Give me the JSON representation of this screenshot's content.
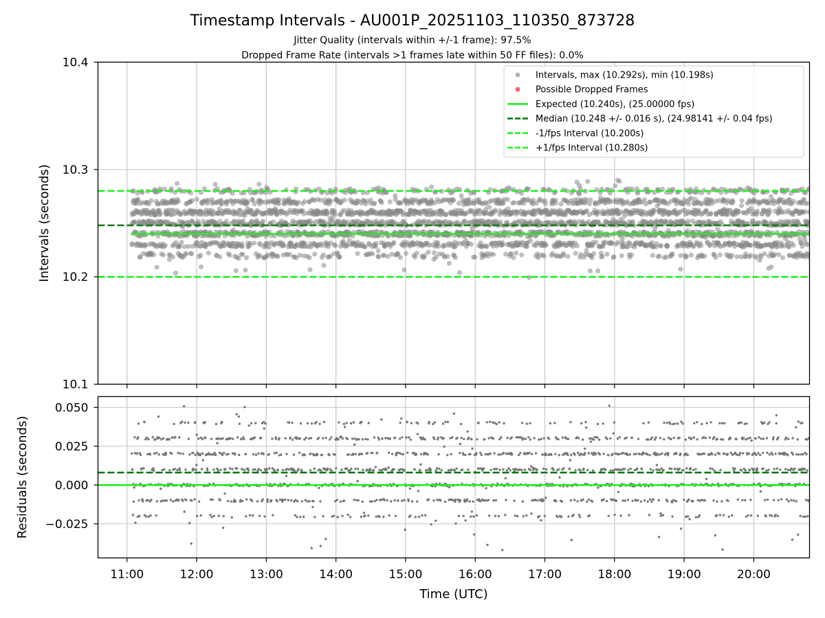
{
  "chart_data": [
    {
      "type": "scatter",
      "title": "Timestamp Intervals - AU001P_20251103_110350_873728",
      "subtitle_lines": [
        "Jitter Quality (intervals within +/-1 frame): 97.5%",
        "Dropped Frame Rate (intervals >1 frames late within 50 FF files): 0.0%"
      ],
      "ylabel": "Intervals (seconds)",
      "xlim": [
        "10:35",
        "20:48"
      ],
      "ylim": [
        10.1,
        10.4
      ],
      "yticks": [
        "10.1",
        "10.2",
        "10.3",
        "10.4"
      ],
      "grid": true,
      "legend_position": "top-right",
      "legend": [
        {
          "label": "Intervals, max (10.292s), min (10.198s)",
          "kind": "marker",
          "color": "#a8a8a8"
        },
        {
          "label": "Possible Dropped Frames",
          "kind": "marker",
          "color": "#ee6666"
        },
        {
          "label": "Expected (10.240s), (25.00000 fps)",
          "kind": "solid",
          "color": "#22ee22"
        },
        {
          "label": "Median (10.248 +/- 0.016 s), (24.98141 +/- 0.04 fps)",
          "kind": "dashed",
          "color": "#117711"
        },
        {
          "label": "-1/fps Interval (10.200s)",
          "kind": "dashed",
          "color": "#22ee22"
        },
        {
          "label": "+1/fps Interval (10.280s)",
          "kind": "dashed",
          "color": "#22ee22"
        }
      ],
      "series": [
        {
          "name": "Intervals",
          "style": "scatter",
          "x_range": [
            "11:04",
            "20:48"
          ],
          "count": 3440,
          "levels": [
            10.22,
            10.23,
            10.24,
            10.25,
            10.26,
            10.27,
            10.28
          ],
          "max": 10.292,
          "min": 10.198,
          "color": "#8a8a8a"
        },
        {
          "name": "Possible Dropped Frames",
          "style": "scatter",
          "values": [],
          "color": "#ee6666"
        },
        {
          "name": "Expected",
          "style": "hline",
          "y": 10.24,
          "x_start": "11:04",
          "color": "#22ee22"
        },
        {
          "name": "Median",
          "style": "hline-dashed",
          "y": 10.248,
          "color": "#117711"
        },
        {
          "name": "-1/fps Interval",
          "style": "hline-dashed",
          "y": 10.2,
          "color": "#22ee22"
        },
        {
          "name": "+1/fps Interval",
          "style": "hline-dashed",
          "y": 10.28,
          "color": "#22ee22"
        }
      ]
    },
    {
      "type": "scatter",
      "ylabel": "Residuals (seconds)",
      "xlabel": "Time (UTC)",
      "xlim": [
        "10:35",
        "20:48"
      ],
      "xticks": [
        "11:00",
        "12:00",
        "13:00",
        "14:00",
        "15:00",
        "16:00",
        "17:00",
        "18:00",
        "19:00",
        "20:00"
      ],
      "ylim": [
        -0.047,
        0.057
      ],
      "yticks": [
        "−0.025",
        "0.000",
        "0.025",
        "0.050"
      ],
      "grid": true,
      "series": [
        {
          "name": "Residuals",
          "style": "scatter",
          "x_range": [
            "11:04",
            "20:48"
          ],
          "count": 1720,
          "levels": [
            -0.02,
            -0.01,
            0.0,
            0.01,
            0.02,
            0.03,
            0.04
          ],
          "max": 0.052,
          "min": -0.042,
          "color": "#777777"
        },
        {
          "name": "Median offset",
          "style": "hline-dashed",
          "y": 0.008,
          "color": "#117711"
        },
        {
          "name": "Zero",
          "style": "hline",
          "y": 0.0,
          "color": "#22ee22"
        }
      ]
    }
  ]
}
